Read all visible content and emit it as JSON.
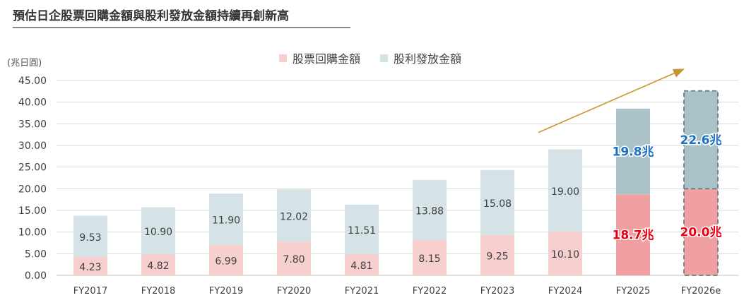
{
  "title": "預估日企股票回購金額與股利發放金額持續再創新高",
  "colors": {
    "buyback": "#f7cfcf",
    "buyback_highlight": "#f0a0a0",
    "dividend": "#d6e3e6",
    "dividend_highlight": "#a9c3c8",
    "label_red": "#e60012",
    "label_blue": "#1f6fbf",
    "label_text": "#404040",
    "axis_text": "#404040",
    "gridline": "#d9d9d9",
    "arrow": "#c8962e",
    "dash": "#5f7f86"
  },
  "chart_data": {
    "type": "bar",
    "stacked": true,
    "title": "預估日企股票回購金額與股利發放金額持續再創新高",
    "ylabel": "(兆日圓)",
    "ylim": [
      0,
      45
    ],
    "yticks": [
      "0.00",
      "5.00",
      "10.00",
      "15.00",
      "20.00",
      "25.00",
      "30.00",
      "35.00",
      "40.00",
      "45.00"
    ],
    "grid": true,
    "legend_position": "top-center",
    "categories": [
      "FY2017",
      "FY2018",
      "FY2019",
      "FY2020",
      "FY2021",
      "FY2022",
      "FY2023",
      "FY2024",
      "FY2025",
      "FY2026e"
    ],
    "series": [
      {
        "name": "股票回購金額",
        "values": [
          4.23,
          4.82,
          6.99,
          7.8,
          4.81,
          8.15,
          9.25,
          10.1,
          18.7,
          20.0
        ],
        "labels": [
          "4.23",
          "4.82",
          "6.99",
          "7.80",
          "4.81",
          "8.15",
          "9.25",
          "10.10",
          "18.7兆",
          "20.0兆"
        ]
      },
      {
        "name": "股利發放金額",
        "values": [
          9.53,
          10.9,
          11.9,
          12.02,
          11.51,
          13.88,
          15.08,
          19.0,
          19.8,
          22.6
        ],
        "labels": [
          "9.53",
          "10.90",
          "11.90",
          "12.02",
          "11.51",
          "13.88",
          "15.08",
          "19.00",
          "19.8兆",
          "22.6兆"
        ]
      }
    ],
    "highlighted_categories": [
      "FY2025",
      "FY2026e"
    ],
    "estimated_categories": [
      "FY2026e"
    ],
    "trend_arrow": {
      "from": [
        "FY2024",
        33.0
      ],
      "to": [
        "FY2025",
        47.5
      ]
    }
  }
}
